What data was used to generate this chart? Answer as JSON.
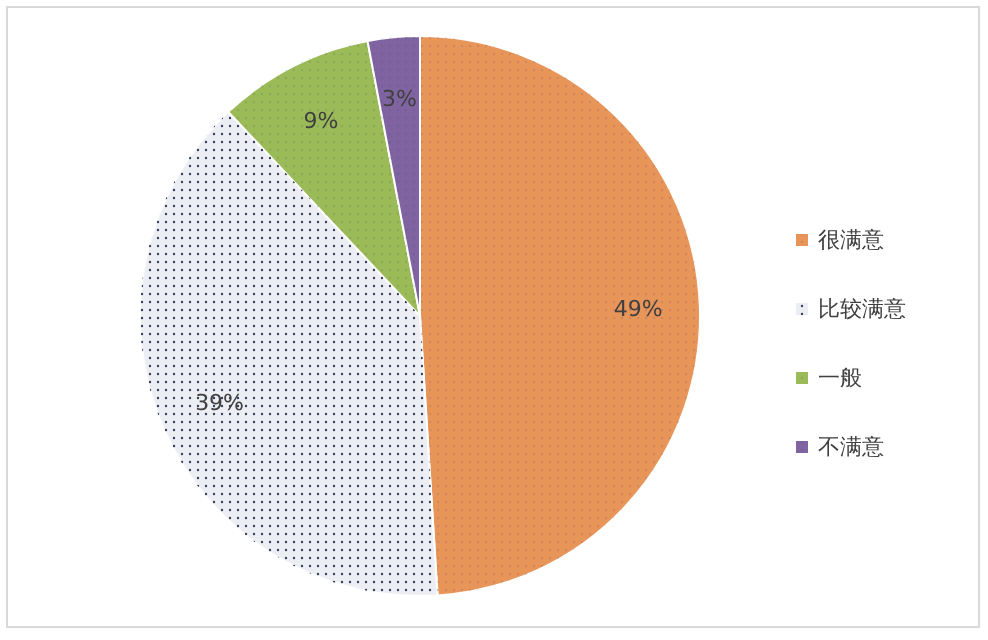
{
  "chart_data": {
    "type": "pie",
    "categories": [
      "很满意",
      "比较满意",
      "一般",
      "不满意"
    ],
    "values": [
      49,
      39,
      9,
      3
    ],
    "colors": [
      "#e8955a",
      "#eceef4",
      "#9bbb59",
      "#8064a2"
    ],
    "value_labels": [
      "49%",
      "39%",
      "9%",
      "3%"
    ],
    "legend": "right"
  }
}
